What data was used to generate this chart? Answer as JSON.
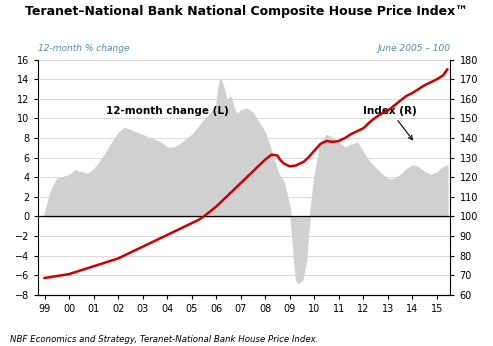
{
  "title": "Teranet–National Bank National Composite House Price Index™",
  "subtitle_left": "12-month % change",
  "subtitle_right": "June 2005 – 100",
  "xlabel_note": "NBF Economics and Strategy, Teranet-National Bank House Price Index.",
  "left_ylim": [
    -8,
    16
  ],
  "right_ylim": [
    60,
    180
  ],
  "left_yticks": [
    -8,
    -6,
    -4,
    -2,
    0,
    2,
    4,
    6,
    8,
    10,
    12,
    14,
    16
  ],
  "right_yticks": [
    60,
    70,
    80,
    90,
    100,
    110,
    120,
    130,
    140,
    150,
    160,
    170,
    180
  ],
  "xticks": [
    1999,
    2000,
    2001,
    2002,
    2003,
    2004,
    2005,
    2006,
    2007,
    2008,
    2009,
    2010,
    2011,
    2012,
    2013,
    2014,
    2015
  ],
  "xticklabels": [
    "99",
    "00",
    "01",
    "02",
    "03",
    "04",
    "05",
    "06",
    "07",
    "08",
    "09",
    "10",
    "11",
    "12",
    "13",
    "14",
    "15"
  ],
  "area_color": "#d0d0d0",
  "line_color": "#cc0000",
  "annotation_color": "#5588aa",
  "years_12m": [
    1999.0,
    1999.25,
    1999.5,
    1999.75,
    2000.0,
    2000.25,
    2000.5,
    2000.75,
    2001.0,
    2001.25,
    2001.5,
    2001.75,
    2002.0,
    2002.25,
    2002.5,
    2002.75,
    2003.0,
    2003.25,
    2003.5,
    2003.75,
    2004.0,
    2004.25,
    2004.5,
    2004.75,
    2005.0,
    2005.25,
    2005.5,
    2005.75,
    2006.0,
    2006.08,
    2006.16,
    2006.25,
    2006.33,
    2006.41,
    2006.5,
    2006.58,
    2006.66,
    2006.75,
    2006.83,
    2006.91,
    2007.0,
    2007.25,
    2007.5,
    2007.75,
    2008.0,
    2008.25,
    2008.5,
    2008.75,
    2009.0,
    2009.08,
    2009.16,
    2009.25,
    2009.33,
    2009.5,
    2009.66,
    2009.75,
    2010.0,
    2010.25,
    2010.5,
    2010.75,
    2011.0,
    2011.25,
    2011.5,
    2011.75,
    2012.0,
    2012.25,
    2012.5,
    2012.75,
    2013.0,
    2013.25,
    2013.5,
    2013.75,
    2014.0,
    2014.25,
    2014.5,
    2014.75,
    2015.0,
    2015.25,
    2015.42
  ],
  "values_12m": [
    0.2,
    2.5,
    3.8,
    4.0,
    4.2,
    4.7,
    4.5,
    4.3,
    4.8,
    5.5,
    6.5,
    7.5,
    8.5,
    9.0,
    8.8,
    8.5,
    8.3,
    8.0,
    7.8,
    7.5,
    7.0,
    7.0,
    7.3,
    7.8,
    8.3,
    9.0,
    9.8,
    10.5,
    11.2,
    13.0,
    14.0,
    13.5,
    12.8,
    12.0,
    12.0,
    12.2,
    11.5,
    10.8,
    10.5,
    10.5,
    10.8,
    11.0,
    10.5,
    9.5,
    8.5,
    6.5,
    4.5,
    3.5,
    0.8,
    -1.5,
    -4.0,
    -6.5,
    -6.8,
    -6.5,
    -4.5,
    -1.5,
    4.0,
    7.5,
    8.3,
    8.0,
    7.5,
    7.0,
    7.3,
    7.5,
    6.5,
    5.5,
    4.9,
    4.3,
    3.8,
    3.8,
    4.2,
    4.8,
    5.2,
    5.0,
    4.5,
    4.2,
    4.5,
    5.0,
    5.2
  ],
  "years_idx": [
    1999.0,
    1999.25,
    1999.5,
    1999.75,
    2000.0,
    2000.25,
    2000.5,
    2000.75,
    2001.0,
    2001.25,
    2001.5,
    2001.75,
    2002.0,
    2002.25,
    2002.5,
    2002.75,
    2003.0,
    2003.25,
    2003.5,
    2003.75,
    2004.0,
    2004.25,
    2004.5,
    2004.75,
    2005.0,
    2005.25,
    2005.5,
    2005.75,
    2006.0,
    2006.25,
    2006.5,
    2006.75,
    2007.0,
    2007.25,
    2007.5,
    2007.75,
    2008.0,
    2008.25,
    2008.5,
    2008.6,
    2008.75,
    2009.0,
    2009.25,
    2009.5,
    2009.58,
    2009.75,
    2010.0,
    2010.25,
    2010.5,
    2010.75,
    2011.0,
    2011.25,
    2011.5,
    2011.75,
    2012.0,
    2012.25,
    2012.5,
    2012.75,
    2013.0,
    2013.25,
    2013.5,
    2013.75,
    2014.0,
    2014.25,
    2014.5,
    2014.75,
    2015.0,
    2015.25,
    2015.42
  ],
  "values_idx": [
    68.5,
    69.0,
    69.5,
    70.0,
    70.5,
    71.5,
    72.5,
    73.5,
    74.5,
    75.5,
    76.5,
    77.5,
    78.5,
    80.0,
    81.5,
    83.0,
    84.5,
    86.0,
    87.5,
    89.0,
    90.5,
    92.0,
    93.5,
    95.0,
    96.5,
    98.0,
    100.0,
    102.5,
    105.0,
    108.0,
    111.0,
    114.0,
    117.0,
    120.0,
    123.0,
    126.0,
    129.0,
    131.5,
    131.0,
    129.0,
    127.0,
    125.5,
    126.0,
    127.5,
    128.0,
    130.0,
    133.5,
    137.0,
    138.5,
    138.0,
    138.5,
    140.0,
    142.0,
    143.5,
    145.0,
    148.0,
    150.5,
    152.5,
    154.0,
    156.5,
    159.0,
    161.5,
    163.0,
    165.0,
    167.0,
    168.5,
    170.0,
    172.0,
    175.0
  ]
}
